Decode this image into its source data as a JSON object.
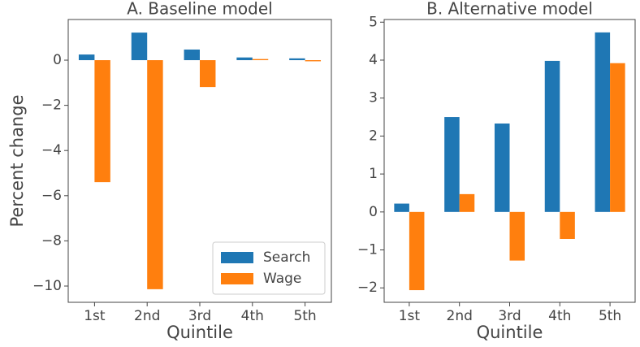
{
  "chart_data": [
    {
      "type": "bar",
      "title": "A. Baseline model",
      "xlabel": "Quintile",
      "ylabel": "Percent change",
      "categories": [
        "1st",
        "2nd",
        "3rd",
        "4th",
        "5th"
      ],
      "series": [
        {
          "name": "Search",
          "color": "#1f77b4",
          "values": [
            0.25,
            1.22,
            0.47,
            0.12,
            0.08
          ]
        },
        {
          "name": "Wage",
          "color": "#ff7f0e",
          "values": [
            -5.4,
            -10.14,
            -1.19,
            0.05,
            -0.05
          ]
        }
      ],
      "ylim": [
        -10.72,
        1.8
      ],
      "yticks": [
        {
          "value": -10,
          "label": "−10"
        },
        {
          "value": -8,
          "label": "−8"
        },
        {
          "value": -6,
          "label": "−6"
        },
        {
          "value": -4,
          "label": "−4"
        },
        {
          "value": -2,
          "label": "−2"
        },
        0
      ],
      "legend": "lower right"
    },
    {
      "type": "bar",
      "title": "B. Alternative model",
      "xlabel": "Quintile",
      "categories": [
        "1st",
        "2nd",
        "3rd",
        "4th",
        "5th"
      ],
      "series": [
        {
          "color": "#1f77b4",
          "values": [
            0.22,
            2.5,
            2.33,
            3.98,
            4.73
          ]
        },
        {
          "color": "#ff7f0e",
          "values": [
            -2.06,
            0.47,
            -1.28,
            -0.71,
            3.92
          ]
        }
      ],
      "ylim": [
        -2.38,
        5.07
      ],
      "yticks": [
        {
          "value": -2,
          "label": "−2"
        },
        {
          "value": -1,
          "label": "−1"
        },
        0,
        1,
        2,
        3,
        4,
        5
      ]
    }
  ]
}
